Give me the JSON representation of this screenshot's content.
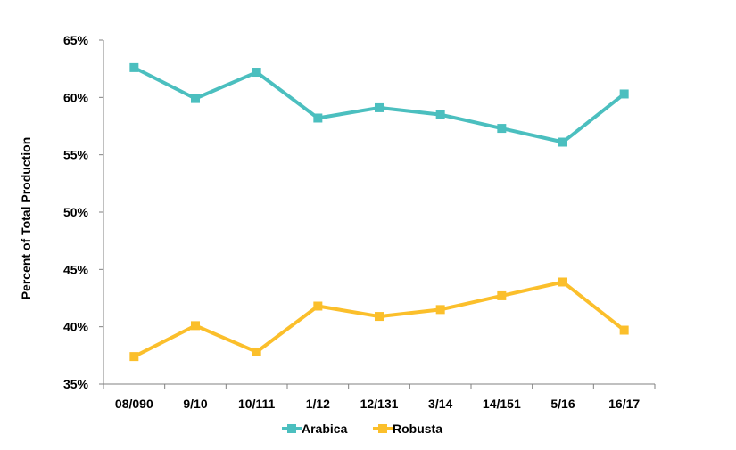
{
  "chart_data": {
    "type": "line",
    "title": "",
    "xlabel": "",
    "ylabel": "Percent of Total Production",
    "categories": [
      "08/090",
      "9/10",
      "10/111",
      "1/12",
      "12/131",
      "3/14",
      "14/151",
      "5/16",
      "16/17"
    ],
    "yticks": [
      "35%",
      "40%",
      "45%",
      "50%",
      "55%",
      "60%",
      "65%"
    ],
    "ylim": [
      35,
      65
    ],
    "grid": false,
    "legend_position": "bottom",
    "series": [
      {
        "name": "Arabica",
        "color": "#4bbfbf",
        "marker": "square",
        "values": [
          62.6,
          59.9,
          62.2,
          58.2,
          59.1,
          58.5,
          57.3,
          56.1,
          60.3
        ]
      },
      {
        "name": "Robusta",
        "color": "#fbbf2b",
        "marker": "square",
        "values": [
          37.4,
          40.1,
          37.8,
          41.8,
          40.9,
          41.5,
          42.7,
          43.9,
          39.7
        ]
      }
    ]
  }
}
